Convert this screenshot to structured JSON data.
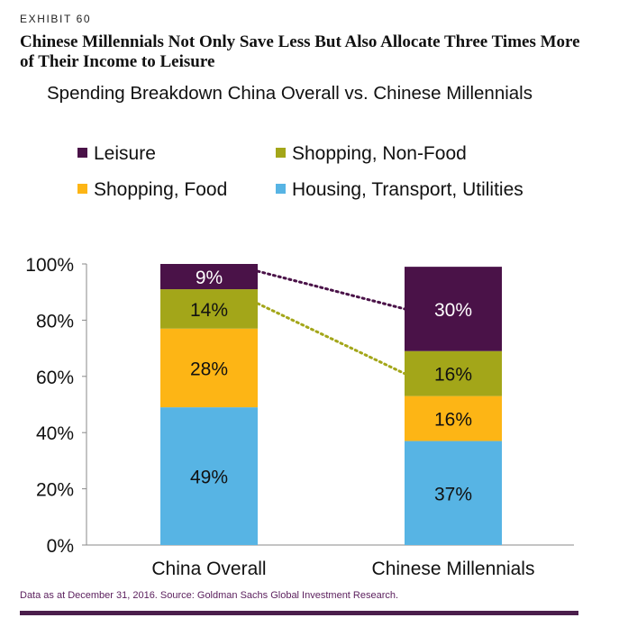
{
  "exhibit_label": "EXHIBIT 60",
  "headline": "Chinese Millennials Not Only Save Less But Also Allocate Three Times More of Their Income to Leisure",
  "footnote": "Data as at December 31, 2016. Source: Goldman Sachs Global Investment Research.",
  "colors": {
    "leisure": "#4a1248",
    "shopping_non_food": "#a3a619",
    "shopping_food": "#fdb515",
    "housing": "#57b4e4",
    "axis": "#888888",
    "rule": "#4b1e4c",
    "connector_leisure": "#4a1248",
    "connector_nonfood": "#a3a619"
  },
  "chart_data": {
    "type": "bar",
    "stacked": true,
    "title": "Spending Breakdown China Overall vs. Chinese Millennials",
    "xlabel": "",
    "ylabel": "",
    "ylim": [
      0,
      100
    ],
    "yticks": [
      "0%",
      "20%",
      "40%",
      "60%",
      "80%",
      "100%"
    ],
    "categories": [
      "China Overall",
      "Chinese Millennials"
    ],
    "series": [
      {
        "name": "Housing, Transport, Utilities",
        "color_key": "housing",
        "values": [
          49,
          37
        ],
        "labels": [
          "49%",
          "37%"
        ]
      },
      {
        "name": "Shopping, Food",
        "color_key": "shopping_food",
        "values": [
          28,
          16
        ],
        "labels": [
          "28%",
          "16%"
        ]
      },
      {
        "name": "Shopping, Non-Food",
        "color_key": "shopping_non_food",
        "values": [
          14,
          16
        ],
        "labels": [
          "14%",
          "16%"
        ]
      },
      {
        "name": "Leisure",
        "color_key": "leisure",
        "values": [
          9,
          30
        ],
        "labels": [
          "9%",
          "30%"
        ]
      }
    ],
    "legend": [
      {
        "name": "Leisure",
        "color_key": "leisure"
      },
      {
        "name": "Shopping, Non-Food",
        "color_key": "shopping_non_food"
      },
      {
        "name": "Shopping, Food",
        "color_key": "shopping_food"
      },
      {
        "name": "Housing, Transport, Utilities",
        "color_key": "housing"
      }
    ],
    "legend_position": "top",
    "grid": false,
    "connectors": [
      {
        "series": "Leisure",
        "style": "dotted"
      },
      {
        "series": "Shopping, Non-Food",
        "style": "dotted"
      }
    ]
  }
}
